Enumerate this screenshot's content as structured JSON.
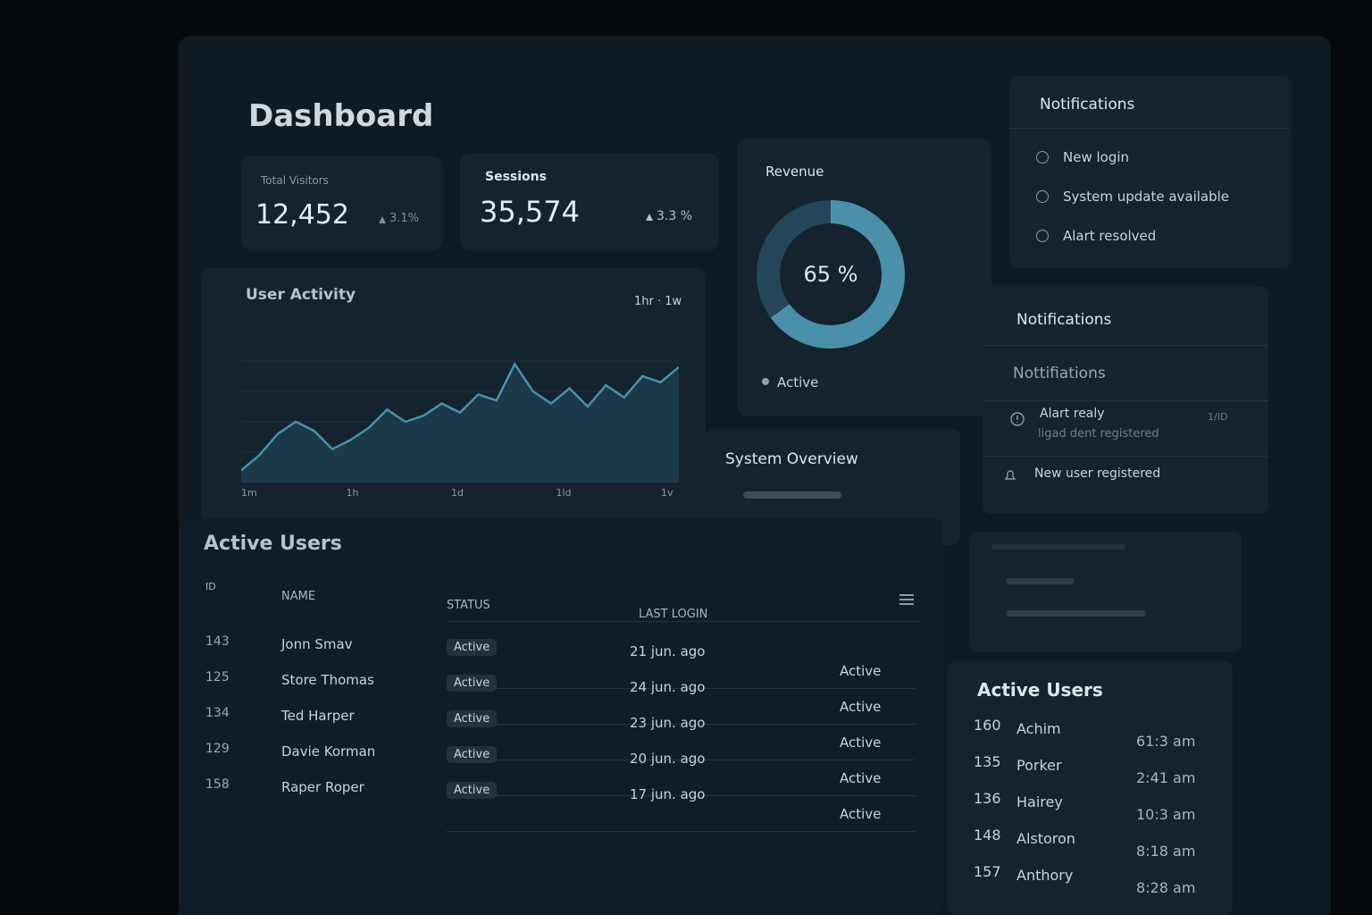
{
  "title": "Dashboard",
  "stats": [
    {
      "label": "Total Visitors",
      "value": "12,452",
      "change": "3.1%"
    },
    {
      "label": "Sessions",
      "value": "35,574",
      "change": "3.3 %"
    }
  ],
  "user_activity": {
    "title": "User Activity",
    "range": "1hr · 1w",
    "x_labels": [
      "1m",
      "1h",
      "1d",
      "1ld",
      "1v"
    ],
    "values": [
      8,
      18,
      32,
      40,
      34,
      22,
      28,
      36,
      48,
      40,
      44,
      52,
      46,
      58,
      54,
      78,
      60,
      52,
      62,
      50,
      64,
      56,
      70,
      66,
      76
    ],
    "ylim": [
      0,
      100
    ]
  },
  "revenue": {
    "title": "Revenue",
    "value": 65,
    "value_label": "65 %",
    "legend": "Active"
  },
  "system_overview": {
    "title": "System Overview"
  },
  "active_users_table": {
    "title": "Active Users",
    "columns": [
      "ID",
      "NAME",
      "STATUS",
      "LAST LOGIN"
    ],
    "rows": [
      [
        "143",
        "Jonn Smav",
        "Active",
        "21 jun. ago",
        "Active"
      ],
      [
        "125",
        "Store Thomas",
        "Active",
        "24 jun. ago",
        "Active"
      ],
      [
        "134",
        "Ted Harper",
        "Active",
        "23 jun. ago",
        "Active"
      ],
      [
        "129",
        "Davie Korman",
        "Active",
        "20 jun. ago",
        "Active"
      ],
      [
        "158",
        "Raper Roper",
        "Active",
        "17 jun. ago",
        "Active"
      ]
    ]
  },
  "notifications": {
    "title": "Notifications",
    "items": [
      "New login",
      "System update available",
      "Alart resolved"
    ]
  },
  "notifications_2": {
    "title": "Notifications",
    "subtitle": "Nottifiations",
    "items": [
      {
        "text": "Alart realy",
        "detail": "ligad dent registered",
        "meta": "1/ID"
      },
      {
        "text": "New user registered"
      }
    ]
  },
  "active_users_list": {
    "title": "Active Users",
    "rows": [
      [
        "160",
        "Achim",
        "61:3 am"
      ],
      [
        "135",
        "Porker",
        "2:41 am"
      ],
      [
        "136",
        "Hairey",
        "10:3 am"
      ],
      [
        "148",
        "Alstoron",
        "8:18 am"
      ],
      [
        "157",
        "Anthory",
        "8:28 am"
      ]
    ]
  }
}
